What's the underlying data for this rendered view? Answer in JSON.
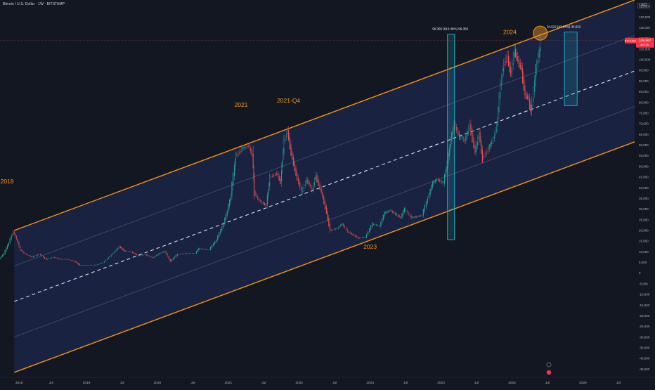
{
  "header": {
    "title": "Bitcoin / U.S. Dollar · 1W · BITSTAMP",
    "currency": "USD"
  },
  "price_label": {
    "symbol": "BTCUSD",
    "price": "108,967",
    "sub": "4d 11h"
  },
  "chart_data": {
    "type": "candlestick",
    "title": "Bitcoin / U.S. Dollar · 1W · BITSTAMP",
    "y_unit": "USD",
    "ylim": [
      -47500,
      128000
    ],
    "y_ticks": [
      125000,
      120000,
      115000,
      110000,
      105000,
      100000,
      95000,
      90000,
      85000,
      80000,
      75000,
      70000,
      65000,
      60000,
      55000,
      50000,
      45000,
      40000,
      35000,
      30000,
      25000,
      20000,
      15000,
      10000,
      5000,
      0,
      -5000,
      -10000,
      -15000,
      -20000,
      -25000,
      -30000,
      -35000,
      -40000,
      -45000
    ],
    "x_ticks": [
      {
        "label": "2018",
        "t": 2018.0
      },
      {
        "label": "Jul",
        "t": 2018.5
      },
      {
        "label": "2019",
        "t": 2019.0
      },
      {
        "label": "Jul",
        "t": 2019.5
      },
      {
        "label": "2020",
        "t": 2020.0
      },
      {
        "label": "Jul",
        "t": 2020.5
      },
      {
        "label": "2021",
        "t": 2021.0
      },
      {
        "label": "Jul",
        "t": 2021.5
      },
      {
        "label": "2022",
        "t": 2022.0
      },
      {
        "label": "Jul",
        "t": 2022.5
      },
      {
        "label": "2023",
        "t": 2023.0
      },
      {
        "label": "Jul",
        "t": 2023.5
      },
      {
        "label": "2024",
        "t": 2024.0
      },
      {
        "label": "Jul",
        "t": 2024.5
      },
      {
        "label": "2025",
        "t": 2025.0
      },
      {
        "label": "Jul",
        "t": 2025.5
      },
      {
        "label": "2026",
        "t": 2026.0
      },
      {
        "label": "Jul",
        "t": 2026.5
      }
    ],
    "xlim": [
      2017.78,
      2026.73
    ],
    "price_path": [
      [
        2017.78,
        6500
      ],
      [
        2017.85,
        9000
      ],
      [
        2017.92,
        14000
      ],
      [
        2017.98,
        19500
      ],
      [
        2018.03,
        16000
      ],
      [
        2018.08,
        11000
      ],
      [
        2018.15,
        9000
      ],
      [
        2018.25,
        7500
      ],
      [
        2018.35,
        9000
      ],
      [
        2018.45,
        6500
      ],
      [
        2018.55,
        7500
      ],
      [
        2018.65,
        6600
      ],
      [
        2018.75,
        6400
      ],
      [
        2018.85,
        5600
      ],
      [
        2018.92,
        3800
      ],
      [
        2019.0,
        3700
      ],
      [
        2019.15,
        3900
      ],
      [
        2019.25,
        5000
      ],
      [
        2019.35,
        8000
      ],
      [
        2019.48,
        12500
      ],
      [
        2019.55,
        10500
      ],
      [
        2019.65,
        10000
      ],
      [
        2019.75,
        8200
      ],
      [
        2019.85,
        8700
      ],
      [
        2019.95,
        7200
      ],
      [
        2020.05,
        9300
      ],
      [
        2020.12,
        10200
      ],
      [
        2020.2,
        5500
      ],
      [
        2020.3,
        8800
      ],
      [
        2020.45,
        9300
      ],
      [
        2020.55,
        9200
      ],
      [
        2020.6,
        11500
      ],
      [
        2020.75,
        11000
      ],
      [
        2020.85,
        15500
      ],
      [
        2020.95,
        23000
      ],
      [
        2021.0,
        29000
      ],
      [
        2021.05,
        36000
      ],
      [
        2021.12,
        55000
      ],
      [
        2021.2,
        58000
      ],
      [
        2021.3,
        60000
      ],
      [
        2021.35,
        56000
      ],
      [
        2021.38,
        38000
      ],
      [
        2021.45,
        34000
      ],
      [
        2021.55,
        32000
      ],
      [
        2021.6,
        45000
      ],
      [
        2021.7,
        47000
      ],
      [
        2021.75,
        43000
      ],
      [
        2021.8,
        62000
      ],
      [
        2021.85,
        67000
      ],
      [
        2021.9,
        57000
      ],
      [
        2021.97,
        47000
      ],
      [
        2022.05,
        38000
      ],
      [
        2022.12,
        44000
      ],
      [
        2022.2,
        39000
      ],
      [
        2022.25,
        46000
      ],
      [
        2022.33,
        38000
      ],
      [
        2022.4,
        29000
      ],
      [
        2022.45,
        20000
      ],
      [
        2022.55,
        21000
      ],
      [
        2022.62,
        23000
      ],
      [
        2022.7,
        19500
      ],
      [
        2022.85,
        16500
      ],
      [
        2022.95,
        16800
      ],
      [
        2023.05,
        23000
      ],
      [
        2023.15,
        22000
      ],
      [
        2023.22,
        28000
      ],
      [
        2023.3,
        29500
      ],
      [
        2023.45,
        26000
      ],
      [
        2023.5,
        30000
      ],
      [
        2023.6,
        26000
      ],
      [
        2023.75,
        27000
      ],
      [
        2023.83,
        35000
      ],
      [
        2023.9,
        42000
      ],
      [
        2023.96,
        44000
      ],
      [
        2024.05,
        42000
      ],
      [
        2024.1,
        51000
      ],
      [
        2024.15,
        62000
      ],
      [
        2024.2,
        70000
      ],
      [
        2024.28,
        64000
      ],
      [
        2024.35,
        62000
      ],
      [
        2024.42,
        70000
      ],
      [
        2024.5,
        57000
      ],
      [
        2024.55,
        66000
      ],
      [
        2024.6,
        54000
      ],
      [
        2024.68,
        58000
      ],
      [
        2024.75,
        63000
      ],
      [
        2024.8,
        69000
      ],
      [
        2024.85,
        88000
      ],
      [
        2024.9,
        98000
      ],
      [
        2024.95,
        102000
      ],
      [
        2025.0,
        94000
      ],
      [
        2025.05,
        105000
      ],
      [
        2025.1,
        100000
      ],
      [
        2025.15,
        96000
      ],
      [
        2025.2,
        84000
      ],
      [
        2025.25,
        82000
      ],
      [
        2025.28,
        76000
      ],
      [
        2025.32,
        85000
      ],
      [
        2025.35,
        95000
      ],
      [
        2025.4,
        104000
      ],
      [
        2025.42,
        108967
      ]
    ],
    "channel": {
      "t0": 2017.98,
      "t1": 2026.73,
      "upper": [
        20000,
        128000
      ],
      "lower": [
        -46500,
        61500
      ],
      "mid": [
        -13250,
        94750
      ]
    },
    "labels": [
      {
        "text": "2018",
        "t": 2017.88,
        "y": 42000
      },
      {
        "text": "2021",
        "t": 2021.18,
        "y": 78000
      },
      {
        "text": "2021-Q4",
        "t": 2021.85,
        "y": 80000
      },
      {
        "text": "2023",
        "t": 2023.0,
        "y": 11500
      },
      {
        "text": "2024",
        "t": 2024.97,
        "y": 112000
      }
    ],
    "measure_1": {
      "text": "96,356 (616.46%) 96,356",
      "t": 2024.14,
      "y_low": 15700,
      "y_high": 112000
    },
    "measure_2": {
      "text": "34,522 (43.94%) 34,522",
      "t": 2025.83,
      "y_low": 78500,
      "y_high": 113000
    }
  },
  "colors": {
    "background": "#131722",
    "channel_line": "#f7931a",
    "channel_fill": "#1e2a55",
    "midline": "#e0e3eb",
    "up": "#26a69a",
    "down": "#ef5350",
    "measure": "#22b5c9",
    "price_badge": "#f23645"
  }
}
